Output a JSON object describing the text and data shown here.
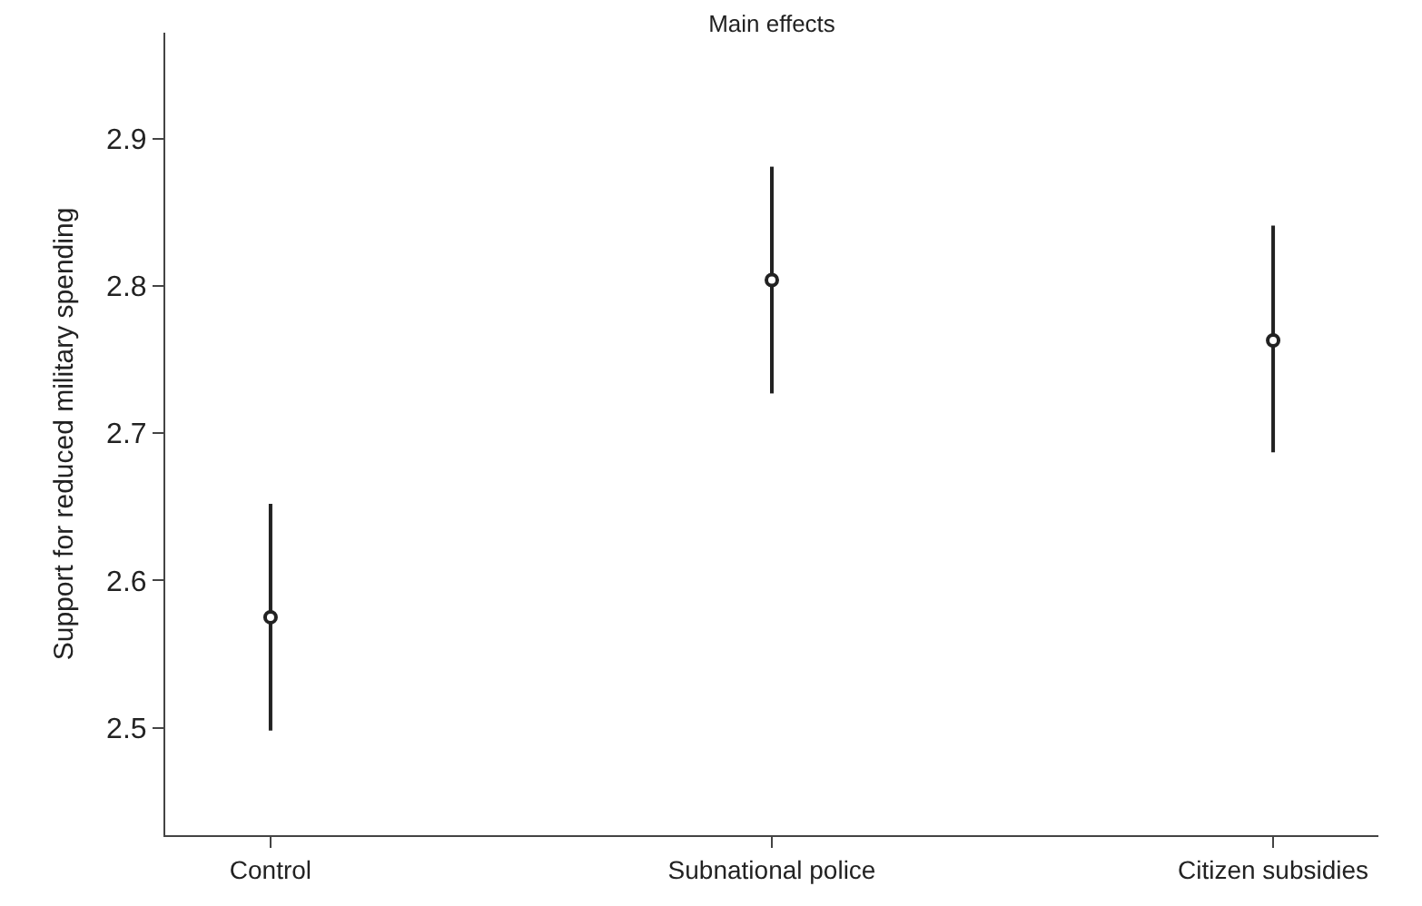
{
  "chart_data": {
    "type": "scatter",
    "title": "Main effects",
    "ylabel": "Support for reduced military spending",
    "categories": [
      "Control",
      "Subnational police",
      "Citizen subsidies"
    ],
    "series": [
      {
        "color": "#222222",
        "values": [
          2.575,
          2.804,
          2.763
        ],
        "errors": [
          [
            2.498,
            2.652
          ],
          [
            2.727,
            2.881
          ],
          [
            2.687,
            2.841
          ]
        ]
      }
    ],
    "ylim": [
      2.427,
      2.972
    ],
    "yticks": [
      2.5,
      2.6,
      2.7,
      2.8,
      2.9
    ],
    "marker": "circle"
  }
}
